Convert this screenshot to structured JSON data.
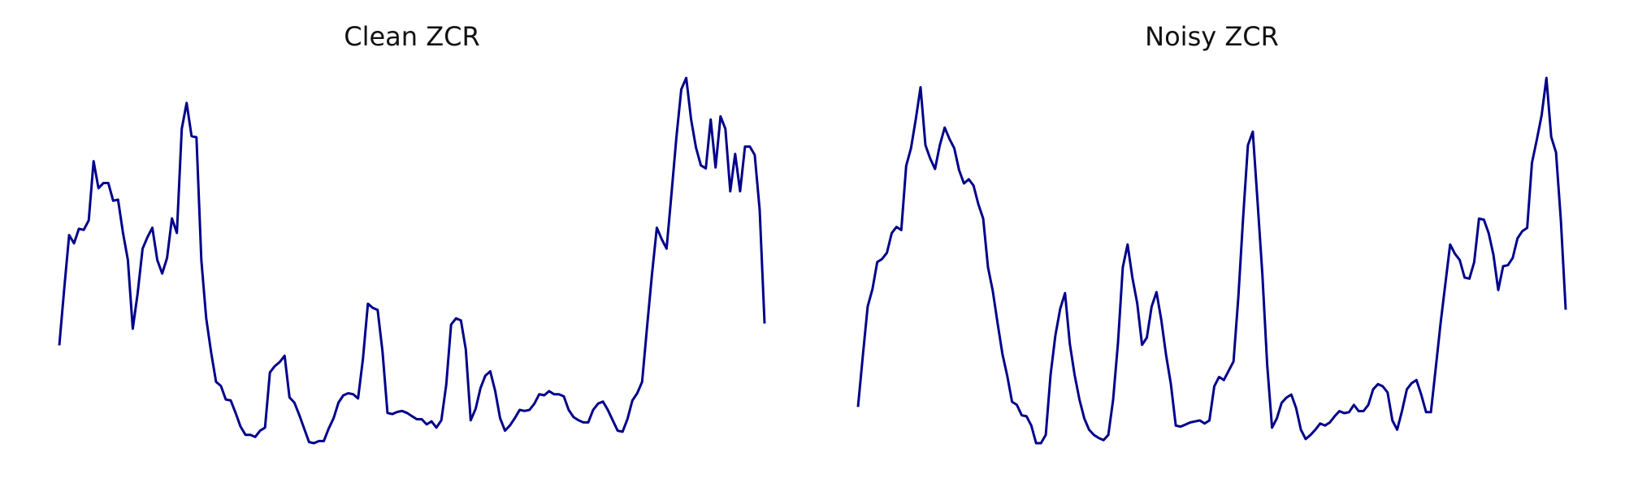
{
  "chart_data": [
    {
      "type": "line",
      "title": "Clean ZCR",
      "color": "#00008b",
      "values": [
        96,
        150,
        202,
        194,
        208,
        207,
        216,
        273,
        247,
        252,
        252,
        235,
        236,
        204,
        178,
        112,
        146,
        189,
        200,
        209,
        178,
        165,
        180,
        218,
        204,
        304,
        329,
        297,
        296,
        178,
        122,
        89,
        61,
        57,
        44,
        43,
        31,
        18,
        10,
        10,
        8,
        14,
        17,
        70,
        76,
        80,
        86,
        46,
        41,
        29,
        16,
        3,
        2,
        4,
        4,
        16,
        26,
        41,
        48,
        50,
        49,
        45,
        83,
        136,
        132,
        130,
        90,
        31,
        30,
        32,
        33,
        31,
        28,
        25,
        25,
        20,
        23,
        17,
        24,
        58,
        116,
        122,
        120,
        92,
        24,
        35,
        55,
        67,
        71,
        52,
        26,
        14,
        19,
        26,
        34,
        33,
        34,
        40,
        49,
        48,
        52,
        49,
        49,
        47,
        34,
        27,
        24,
        22,
        22,
        34,
        40,
        42,
        34,
        24,
        14,
        13,
        25,
        43,
        50,
        61,
        113,
        164,
        209,
        198,
        189,
        242,
        296,
        342,
        353,
        313,
        286,
        269,
        266,
        313,
        267,
        316,
        304,
        244,
        280,
        244,
        287,
        287,
        279,
        226,
        117
      ]
    },
    {
      "type": "line",
      "title": "Noisy ZCR",
      "color": "#00008b",
      "values": [
        37,
        86,
        134,
        151,
        177,
        180,
        186,
        205,
        211,
        208,
        270,
        287,
        315,
        346,
        290,
        277,
        267,
        290,
        307,
        296,
        287,
        266,
        253,
        257,
        251,
        233,
        219,
        172,
        149,
        118,
        88,
        67,
        42,
        39,
        29,
        28,
        19,
        2,
        2,
        10,
        68,
        106,
        132,
        147,
        98,
        68,
        44,
        26,
        15,
        10,
        7,
        5,
        10,
        44,
        99,
        172,
        194,
        162,
        137,
        97,
        104,
        134,
        148,
        121,
        87,
        59,
        19,
        18,
        20,
        22,
        23,
        24,
        21,
        24,
        57,
        66,
        63,
        72,
        81,
        143,
        220,
        290,
        303,
        235,
        165,
        78,
        17,
        26,
        41,
        46,
        49,
        36,
        15,
        6,
        10,
        15,
        21,
        19,
        22,
        28,
        33,
        31,
        32,
        39,
        33,
        33,
        39,
        54,
        59,
        57,
        51,
        24,
        15,
        33,
        54,
        60,
        63,
        49,
        32,
        32,
        74,
        117,
        156,
        194,
        185,
        179,
        162,
        161,
        177,
        219,
        218,
        205,
        184,
        150,
        173,
        174,
        181,
        200,
        207,
        210,
        273,
        295,
        319,
        355,
        298,
        283,
        217,
        131
      ]
    }
  ]
}
